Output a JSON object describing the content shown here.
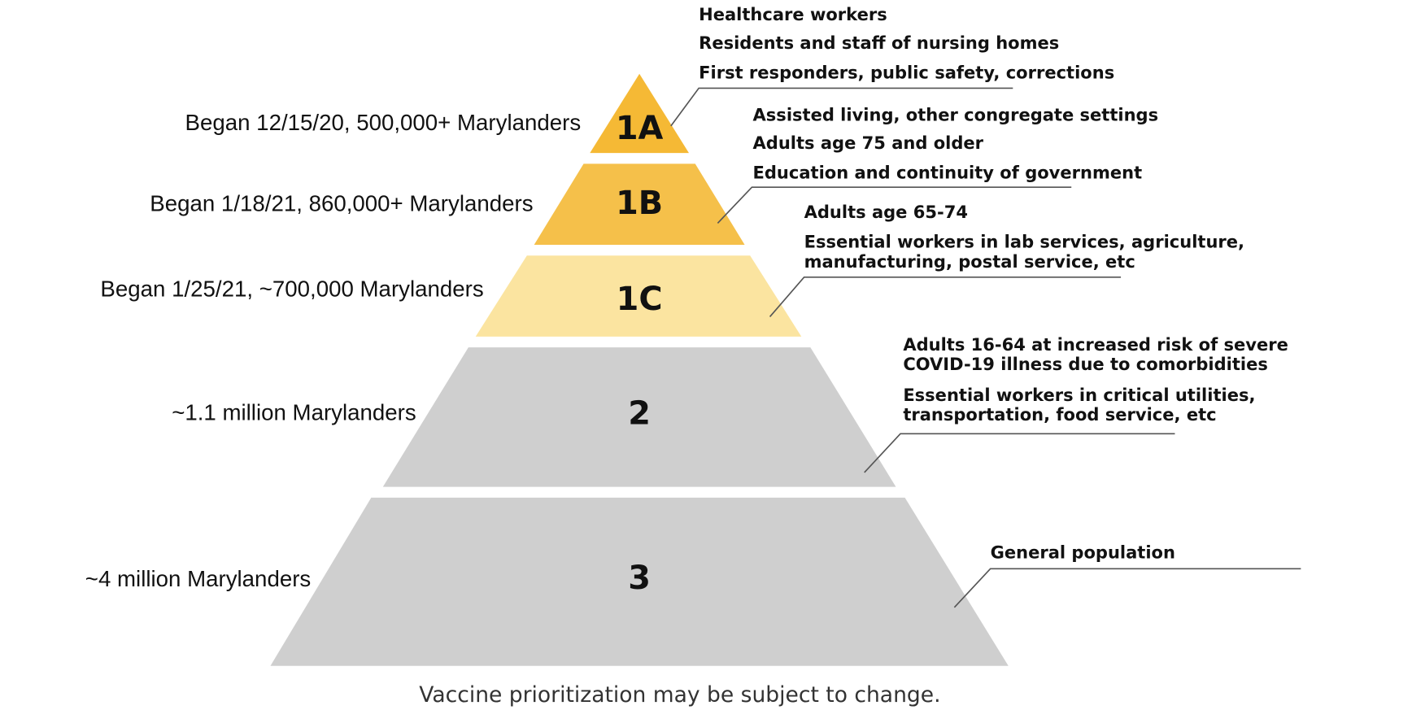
{
  "tiers": [
    {
      "label": "1A",
      "population": "Began 12/15/20, 500,000+ Marylanders",
      "groups": [
        "Healthcare workers",
        "Residents and staff of nursing homes",
        "First responders, public safety, corrections"
      ]
    },
    {
      "label": "1B",
      "population": "Began 1/18/21, 860,000+ Marylanders",
      "groups": [
        "Assisted living, other congregate settings",
        "Adults age 75 and older",
        "Education and continuity of government"
      ]
    },
    {
      "label": "1C",
      "population": "Began 1/25/21, ~700,000 Marylanders",
      "groups": [
        "Adults age 65-74",
        "Essential workers in lab services, agriculture,",
        "manufacturing, postal service, etc"
      ]
    },
    {
      "label": "2",
      "population": "~1.1 million Marylanders",
      "groups": [
        "Adults 16-64 at increased risk of severe",
        "COVID-19 illness due to comorbidities",
        "Essential workers in critical utilities,",
        "transportation, food service, etc"
      ]
    },
    {
      "label": "3",
      "population": "~4 million Marylanders",
      "groups": [
        "General population"
      ]
    }
  ],
  "footer": "Vaccine prioritization may be subject to change."
}
